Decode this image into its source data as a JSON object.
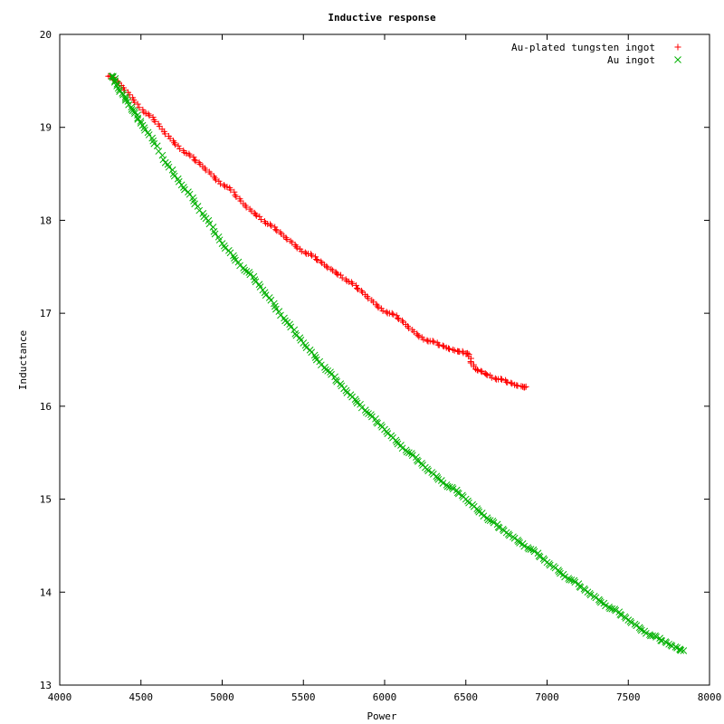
{
  "chart_data": {
    "type": "scatter",
    "title": "Inductive response",
    "xlabel": "Power",
    "ylabel": "Inductance",
    "xlim": [
      4000,
      8000
    ],
    "ylim": [
      13,
      20
    ],
    "x_ticks": [
      "4000",
      "4500",
      "5000",
      "5500",
      "6000",
      "6500",
      "7000",
      "7500",
      "8000"
    ],
    "y_ticks": [
      "13",
      "14",
      "15",
      "16",
      "17",
      "18",
      "19",
      "20"
    ],
    "grid": false,
    "legend_position": "top-right",
    "series": [
      {
        "name": "Au-plated tungsten ingot",
        "marker": "plus",
        "color": "#ff0000",
        "points": [
          [
            4300,
            19.55
          ],
          [
            4330,
            19.52
          ],
          [
            4380,
            19.45
          ],
          [
            4430,
            19.35
          ],
          [
            4480,
            19.25
          ],
          [
            4530,
            19.15
          ],
          [
            4580,
            19.08
          ],
          [
            4630,
            18.98
          ],
          [
            4680,
            18.88
          ],
          [
            4730,
            18.8
          ],
          [
            4780,
            18.72
          ],
          [
            4830,
            18.65
          ],
          [
            4880,
            18.58
          ],
          [
            4930,
            18.5
          ],
          [
            4980,
            18.42
          ],
          [
            5030,
            18.36
          ],
          [
            5080,
            18.27
          ],
          [
            5130,
            18.18
          ],
          [
            5180,
            18.1
          ],
          [
            5230,
            18.04
          ],
          [
            5280,
            17.96
          ],
          [
            5330,
            17.9
          ],
          [
            5380,
            17.83
          ],
          [
            5430,
            17.76
          ],
          [
            5480,
            17.69
          ],
          [
            5530,
            17.64
          ],
          [
            5580,
            17.58
          ],
          [
            5630,
            17.52
          ],
          [
            5680,
            17.46
          ],
          [
            5730,
            17.41
          ],
          [
            5780,
            17.34
          ],
          [
            5830,
            17.27
          ],
          [
            5880,
            17.2
          ],
          [
            5930,
            17.12
          ],
          [
            5980,
            17.05
          ],
          [
            6030,
            17.0
          ],
          [
            6080,
            16.95
          ],
          [
            6130,
            16.88
          ],
          [
            6180,
            16.8
          ],
          [
            6230,
            16.74
          ],
          [
            6280,
            16.7
          ],
          [
            6330,
            16.66
          ],
          [
            6380,
            16.63
          ],
          [
            6430,
            16.6
          ],
          [
            6480,
            16.59
          ],
          [
            6510,
            16.57
          ],
          [
            6530,
            16.48
          ],
          [
            6560,
            16.4
          ],
          [
            6600,
            16.37
          ],
          [
            6650,
            16.33
          ],
          [
            6700,
            16.29
          ],
          [
            6750,
            16.26
          ],
          [
            6800,
            16.23
          ],
          [
            6850,
            16.21
          ],
          [
            6870,
            16.21
          ]
        ]
      },
      {
        "name": "Au ingot",
        "marker": "cross",
        "color": "#00b000",
        "points": [
          [
            4320,
            19.55
          ],
          [
            4340,
            19.5
          ],
          [
            4360,
            19.42
          ],
          [
            4390,
            19.35
          ],
          [
            4420,
            19.28
          ],
          [
            4450,
            19.18
          ],
          [
            4480,
            19.1
          ],
          [
            4510,
            19.02
          ],
          [
            4550,
            18.92
          ],
          [
            4600,
            18.8
          ],
          [
            4650,
            18.62
          ],
          [
            4700,
            18.5
          ],
          [
            4750,
            18.38
          ],
          [
            4800,
            18.28
          ],
          [
            4850,
            18.15
          ],
          [
            4900,
            18.02
          ],
          [
            4950,
            17.88
          ],
          [
            5000,
            17.75
          ],
          [
            5050,
            17.65
          ],
          [
            5100,
            17.55
          ],
          [
            5150,
            17.45
          ],
          [
            5200,
            17.36
          ],
          [
            5250,
            17.25
          ],
          [
            5300,
            17.14
          ],
          [
            5350,
            17.02
          ],
          [
            5400,
            16.9
          ],
          [
            5450,
            16.78
          ],
          [
            5500,
            16.68
          ],
          [
            5550,
            16.58
          ],
          [
            5600,
            16.48
          ],
          [
            5650,
            16.38
          ],
          [
            5700,
            16.28
          ],
          [
            5750,
            16.19
          ],
          [
            5800,
            16.1
          ],
          [
            5850,
            16.02
          ],
          [
            5900,
            15.92
          ],
          [
            5950,
            15.83
          ],
          [
            6000,
            15.75
          ],
          [
            6050,
            15.66
          ],
          [
            6100,
            15.58
          ],
          [
            6150,
            15.5
          ],
          [
            6200,
            15.42
          ],
          [
            6250,
            15.34
          ],
          [
            6300,
            15.27
          ],
          [
            6350,
            15.2
          ],
          [
            6400,
            15.13
          ],
          [
            6450,
            15.07
          ],
          [
            6500,
            15.0
          ],
          [
            6550,
            14.92
          ],
          [
            6600,
            14.85
          ],
          [
            6650,
            14.77
          ],
          [
            6700,
            14.7
          ],
          [
            6750,
            14.64
          ],
          [
            6800,
            14.58
          ],
          [
            6850,
            14.52
          ],
          [
            6900,
            14.46
          ],
          [
            6950,
            14.39
          ],
          [
            7000,
            14.32
          ],
          [
            7050,
            14.26
          ],
          [
            7100,
            14.19
          ],
          [
            7150,
            14.13
          ],
          [
            7200,
            14.06
          ],
          [
            7250,
            14.0
          ],
          [
            7300,
            13.94
          ],
          [
            7350,
            13.88
          ],
          [
            7400,
            13.82
          ],
          [
            7450,
            13.76
          ],
          [
            7500,
            13.7
          ],
          [
            7550,
            13.64
          ],
          [
            7600,
            13.58
          ],
          [
            7650,
            13.53
          ],
          [
            7700,
            13.48
          ],
          [
            7750,
            13.44
          ],
          [
            7800,
            13.4
          ],
          [
            7840,
            13.37
          ]
        ]
      }
    ]
  }
}
